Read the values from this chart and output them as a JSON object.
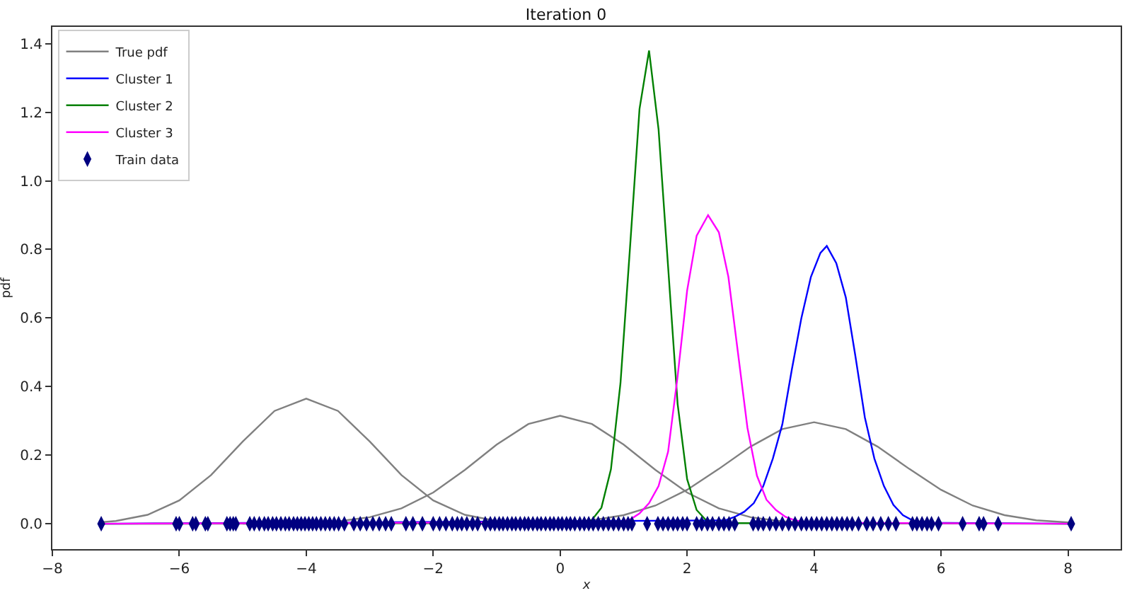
{
  "chart_data": {
    "type": "line",
    "title": "Iteration 0",
    "xlabel": "x",
    "ylabel": "pdf",
    "xlim": [
      -8,
      8.83
    ],
    "ylim": [
      -0.074,
      1.449
    ],
    "xticks": [
      {
        "value": -8,
        "label": "−8"
      },
      {
        "value": -6,
        "label": "−6"
      },
      {
        "value": -4,
        "label": "−4"
      },
      {
        "value": -2,
        "label": "−2"
      },
      0,
      2,
      4,
      6,
      8
    ],
    "yticks": [
      {
        "value": 0,
        "label": "0.0"
      },
      {
        "value": 0.2,
        "label": "0.2"
      },
      {
        "value": 0.4,
        "label": "0.4"
      },
      {
        "value": 0.6,
        "label": "0.6"
      },
      {
        "value": 0.8,
        "label": "0.8"
      },
      {
        "value": 1,
        "label": "1.0"
      },
      {
        "value": 1.2,
        "label": "1.2"
      },
      {
        "value": 1.4,
        "label": "1.4"
      }
    ],
    "grid": false,
    "legend": "top left",
    "series": [
      {
        "name": "True pdf",
        "color": "#808080",
        "x": [
          -7.2,
          -7,
          -6.5,
          -6,
          -5.5,
          -5,
          -4.5,
          -4,
          -3.5,
          -3,
          -2.5,
          -2,
          -1.5,
          -1,
          -0.5,
          0
        ],
        "values": [
          0.005,
          0.008,
          0.026,
          0.068,
          0.142,
          0.24,
          0.329,
          0.365,
          0.329,
          0.24,
          0.142,
          0.068,
          0.026,
          0.008,
          0.002,
          0
        ]
      },
      {
        "color": "#808080",
        "x": [
          -5,
          -4.5,
          -4,
          -3.5,
          -3,
          -2.5,
          -2,
          -1.5,
          -1,
          -0.5,
          0,
          0.5,
          1,
          1.5,
          2,
          2.5,
          3,
          3.5,
          4,
          4.5,
          5
        ],
        "values": [
          0,
          0.001,
          0.002,
          0.007,
          0.019,
          0.045,
          0.091,
          0.157,
          0.231,
          0.291,
          0.315,
          0.291,
          0.231,
          0.157,
          0.091,
          0.045,
          0.019,
          0.007,
          0.002,
          0.001,
          0
        ]
      },
      {
        "color": "#808080",
        "x": [
          -1,
          -0.5,
          0,
          0.5,
          1,
          1.5,
          2,
          2.5,
          3,
          3.5,
          4,
          4.5,
          5,
          5.5,
          6,
          6.5,
          7,
          7.5,
          8,
          8.05
        ],
        "values": [
          0,
          0.001,
          0.004,
          0.01,
          0.025,
          0.053,
          0.099,
          0.16,
          0.225,
          0.276,
          0.296,
          0.276,
          0.225,
          0.16,
          0.099,
          0.053,
          0.025,
          0.01,
          0.004,
          0.004
        ]
      },
      {
        "name": "Cluster 1",
        "color": "#0000ff",
        "x": [
          -7.2,
          2.6,
          2.75,
          2.9,
          3.05,
          3.2,
          3.35,
          3.5,
          3.65,
          3.8,
          3.95,
          4.1,
          4.2,
          4.35,
          4.5,
          4.65,
          4.8,
          4.95,
          5.1,
          5.25,
          5.4,
          5.55,
          5.7,
          8.05
        ],
        "values": [
          0,
          0.01,
          0.02,
          0.035,
          0.06,
          0.11,
          0.19,
          0.29,
          0.45,
          0.6,
          0.72,
          0.79,
          0.81,
          0.76,
          0.66,
          0.49,
          0.31,
          0.19,
          0.11,
          0.055,
          0.025,
          0.01,
          0.003,
          0
        ]
      },
      {
        "name": "Cluster 2",
        "color": "#008000",
        "x": [
          -7.2,
          0.35,
          0.5,
          0.65,
          0.8,
          0.95,
          1.1,
          1.25,
          1.4,
          1.55,
          1.7,
          1.85,
          2.0,
          2.15,
          2.3,
          2.45,
          8.05
        ],
        "values": [
          0,
          0.002,
          0.011,
          0.047,
          0.159,
          0.41,
          0.805,
          1.21,
          1.38,
          1.15,
          0.75,
          0.35,
          0.13,
          0.04,
          0.01,
          0.002,
          0
        ]
      },
      {
        "name": "Cluster 3",
        "color": "#ff00ff",
        "x": [
          -7.2,
          0.95,
          1.1,
          1.25,
          1.4,
          1.55,
          1.7,
          1.85,
          2.0,
          2.15,
          2.33,
          2.5,
          2.65,
          2.8,
          2.95,
          3.1,
          3.25,
          3.4,
          3.55,
          3.7,
          3.9,
          8.05
        ],
        "values": [
          0,
          0.005,
          0.012,
          0.03,
          0.06,
          0.11,
          0.21,
          0.43,
          0.68,
          0.84,
          0.9,
          0.85,
          0.72,
          0.5,
          0.28,
          0.14,
          0.07,
          0.04,
          0.02,
          0.01,
          0.003,
          0
        ]
      },
      {
        "name": "Train data",
        "type": "scatter",
        "color": "#000080",
        "x": [
          -7.23,
          -6.05,
          -6.0,
          -5.79,
          -5.74,
          -5.59,
          -5.55,
          -5.25,
          -5.2,
          -5.15,
          -5.11,
          -4.89,
          -4.82,
          -4.74,
          -4.66,
          -4.6,
          -4.53,
          -4.47,
          -4.4,
          -4.33,
          -4.27,
          -4.2,
          -4.14,
          -4.08,
          -4.02,
          -3.96,
          -3.9,
          -3.84,
          -3.77,
          -3.7,
          -3.63,
          -3.56,
          -3.49,
          -3.4,
          -3.25,
          -3.15,
          -3.05,
          -2.95,
          -2.85,
          -2.75,
          -2.66,
          -2.43,
          -2.32,
          -2.17,
          -2.0,
          -1.9,
          -1.8,
          -1.7,
          -1.62,
          -1.55,
          -1.47,
          -1.38,
          -1.3,
          -1.18,
          -1.1,
          -1.03,
          -0.96,
          -0.9,
          -0.83,
          -0.76,
          -0.7,
          -0.63,
          -0.56,
          -0.5,
          -0.43,
          -0.36,
          -0.3,
          -0.23,
          -0.16,
          -0.1,
          -0.03,
          0.03,
          0.1,
          0.16,
          0.23,
          0.31,
          0.38,
          0.45,
          0.52,
          0.6,
          0.68,
          0.76,
          0.84,
          0.92,
          1.0,
          1.07,
          1.13,
          1.37,
          1.54,
          1.62,
          1.7,
          1.78,
          1.85,
          1.93,
          2.0,
          2.15,
          2.23,
          2.32,
          2.4,
          2.5,
          2.58,
          2.66,
          2.75,
          3.04,
          3.12,
          3.2,
          3.3,
          3.4,
          3.5,
          3.6,
          3.7,
          3.8,
          3.88,
          3.96,
          4.04,
          4.12,
          4.2,
          4.28,
          4.36,
          4.44,
          4.52,
          4.6,
          4.7,
          4.83,
          4.93,
          5.05,
          5.17,
          5.29,
          5.55,
          5.62,
          5.7,
          5.78,
          5.85,
          5.96,
          6.34,
          6.6,
          6.67,
          6.9,
          8.05
        ],
        "values": [
          0,
          0,
          0,
          0,
          0,
          0,
          0,
          0,
          0,
          0,
          0,
          0,
          0,
          0,
          0,
          0,
          0,
          0,
          0,
          0,
          0,
          0,
          0,
          0,
          0,
          0,
          0,
          0,
          0,
          0,
          0,
          0,
          0,
          0,
          0,
          0,
          0,
          0,
          0,
          0,
          0,
          0,
          0,
          0,
          0,
          0,
          0,
          0,
          0,
          0,
          0,
          0,
          0,
          0,
          0,
          0,
          0,
          0,
          0,
          0,
          0,
          0,
          0,
          0,
          0,
          0,
          0,
          0,
          0,
          0,
          0,
          0,
          0,
          0,
          0,
          0,
          0,
          0,
          0,
          0,
          0,
          0,
          0,
          0,
          0,
          0,
          0,
          0,
          0,
          0,
          0,
          0,
          0,
          0,
          0,
          0,
          0,
          0,
          0,
          0,
          0,
          0,
          0,
          0,
          0,
          0,
          0,
          0,
          0,
          0,
          0,
          0,
          0,
          0,
          0,
          0,
          0,
          0,
          0,
          0,
          0,
          0,
          0,
          0,
          0,
          0,
          0,
          0,
          0,
          0,
          0,
          0,
          0,
          0,
          0,
          0,
          0,
          0,
          0
        ]
      }
    ]
  }
}
